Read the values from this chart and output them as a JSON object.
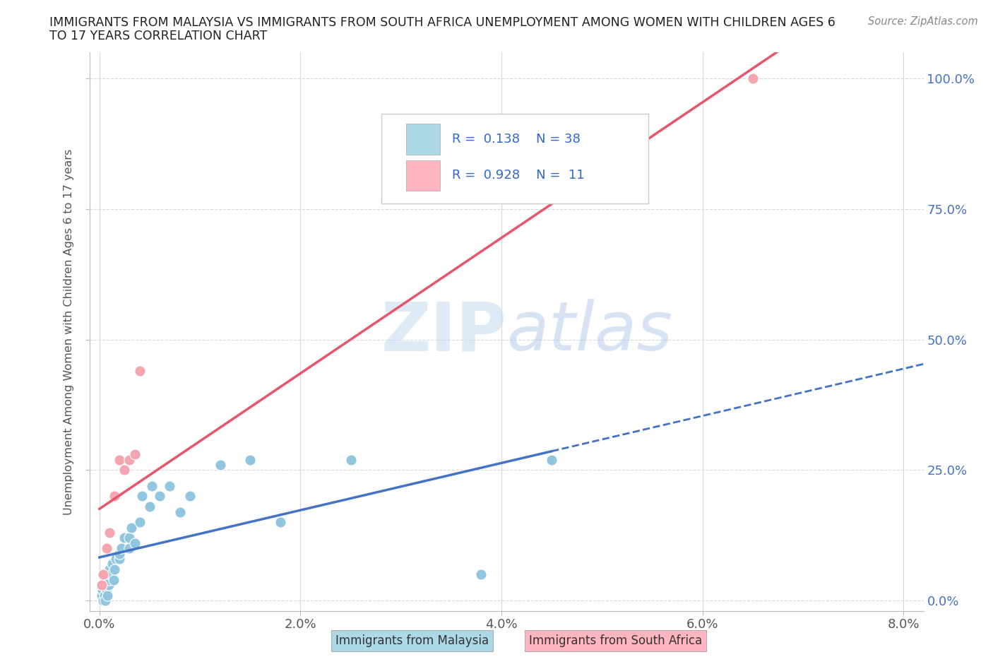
{
  "title_line1": "IMMIGRANTS FROM MALAYSIA VS IMMIGRANTS FROM SOUTH AFRICA UNEMPLOYMENT AMONG WOMEN WITH CHILDREN AGES 6",
  "title_line2": "TO 17 YEARS CORRELATION CHART",
  "source": "Source: ZipAtlas.com",
  "ylabel": "Unemployment Among Women with Children Ages 6 to 17 years",
  "x_ticks": [
    "0.0%",
    "2.0%",
    "4.0%",
    "6.0%",
    "8.0%"
  ],
  "x_tick_vals": [
    0.0,
    0.02,
    0.04,
    0.06,
    0.08
  ],
  "y_ticks_right": [
    "0.0%",
    "25.0%",
    "50.0%",
    "75.0%",
    "100.0%"
  ],
  "y_tick_vals": [
    0.0,
    0.25,
    0.5,
    0.75,
    1.0
  ],
  "xlim": [
    -0.001,
    0.082
  ],
  "ylim": [
    -0.02,
    1.05
  ],
  "malaysia_color": "#92C5DE",
  "south_africa_color": "#F4A6B0",
  "malaysia_line_color": "#4472C4",
  "south_africa_line_color": "#E8556A",
  "watermark_zip": "ZIP",
  "watermark_atlas": "atlas",
  "malaysia_R": 0.138,
  "malaysia_N": 38,
  "south_africa_R": 0.928,
  "south_africa_N": 11,
  "malaysia_x": [
    0.0002,
    0.0003,
    0.0004,
    0.0005,
    0.0006,
    0.0007,
    0.0008,
    0.0009,
    0.001,
    0.001,
    0.001,
    0.0012,
    0.0013,
    0.0014,
    0.0015,
    0.0016,
    0.002,
    0.002,
    0.0022,
    0.0025,
    0.003,
    0.003,
    0.0032,
    0.0035,
    0.004,
    0.0042,
    0.005,
    0.0052,
    0.006,
    0.007,
    0.008,
    0.009,
    0.012,
    0.015,
    0.018,
    0.025,
    0.038,
    0.045
  ],
  "malaysia_y": [
    0.01,
    0.02,
    0.0,
    0.01,
    0.0,
    0.02,
    0.01,
    0.03,
    0.04,
    0.05,
    0.06,
    0.05,
    0.07,
    0.04,
    0.06,
    0.08,
    0.08,
    0.09,
    0.1,
    0.12,
    0.1,
    0.12,
    0.14,
    0.11,
    0.15,
    0.2,
    0.18,
    0.22,
    0.2,
    0.22,
    0.17,
    0.2,
    0.26,
    0.27,
    0.15,
    0.27,
    0.05,
    0.27
  ],
  "sa_x": [
    0.0002,
    0.0004,
    0.0007,
    0.001,
    0.0015,
    0.002,
    0.0025,
    0.003,
    0.0035,
    0.004,
    0.065
  ],
  "sa_y": [
    0.03,
    0.05,
    0.1,
    0.13,
    0.2,
    0.27,
    0.25,
    0.27,
    0.28,
    0.44,
    1.0
  ],
  "grid_color": "#D8D8D8",
  "background_color": "#FFFFFF",
  "legend_box_color_malaysia": "#ADD8E6",
  "legend_box_color_sa": "#FFB6C1",
  "legend_text_color": "#3366CC"
}
